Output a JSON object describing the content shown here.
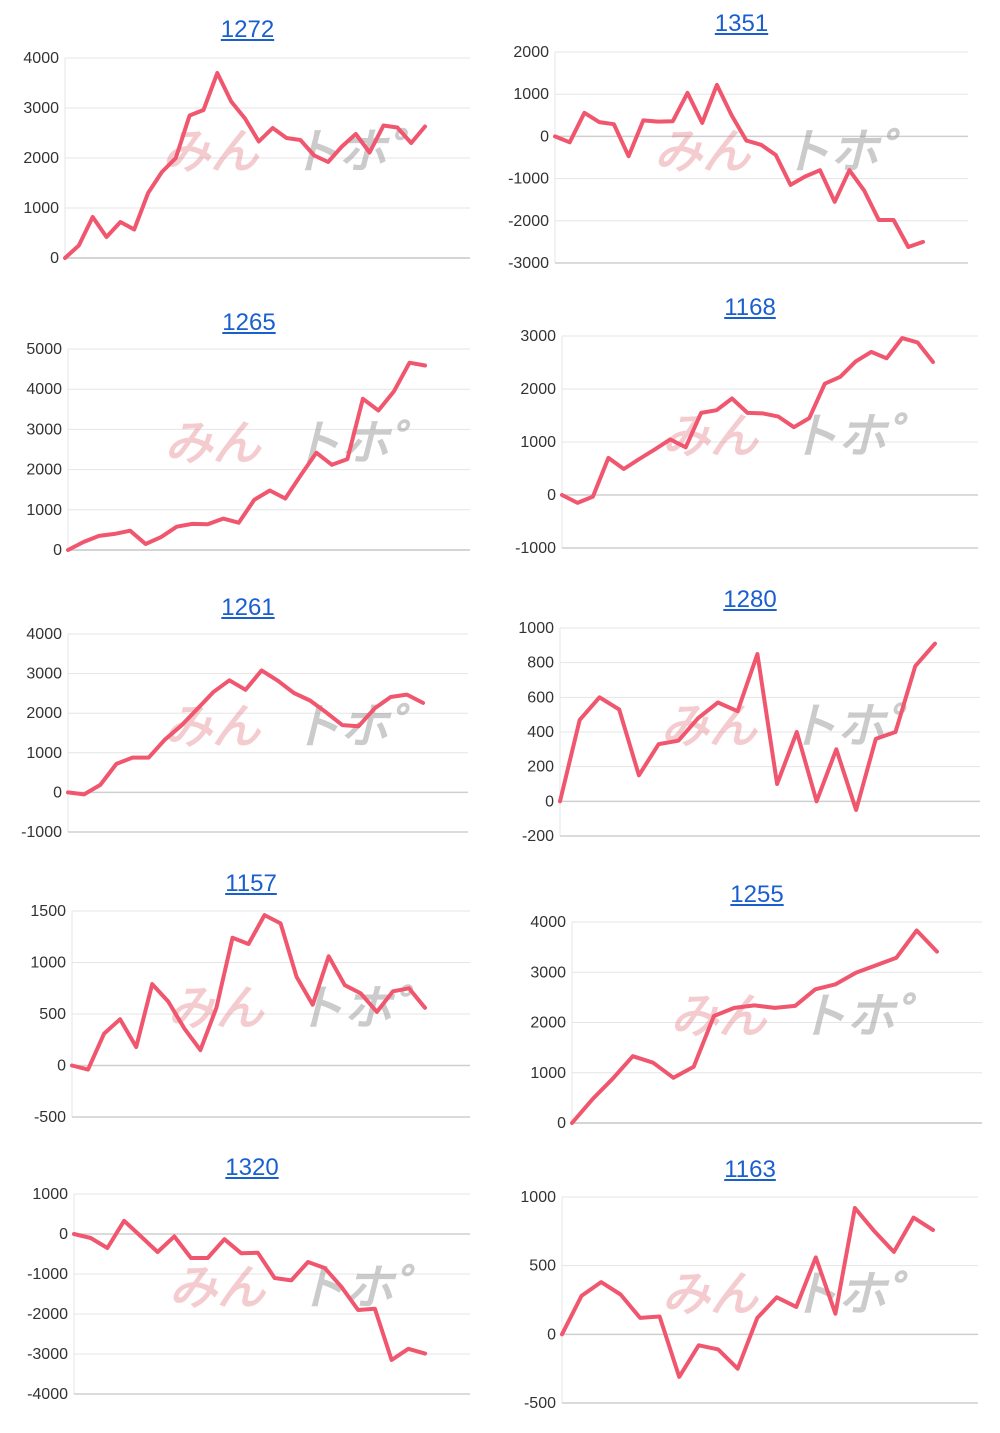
{
  "watermark": {
    "part1": "みん",
    "part2": "ト",
    "part3": "ホ゜"
  },
  "colors": {
    "line": "#f0566e",
    "title": "#1a5fd0"
  },
  "chart_data": [
    {
      "type": "line",
      "title": "1272",
      "ylim": [
        0,
        4000
      ],
      "yticks": [
        0,
        1000,
        2000,
        3000,
        4000
      ],
      "values": [
        0,
        250,
        820,
        420,
        720,
        570,
        1300,
        1720,
        2000,
        2850,
        2960,
        3700,
        3130,
        2790,
        2330,
        2600,
        2400,
        2360,
        2050,
        1920,
        2230,
        2480,
        2110,
        2650,
        2610,
        2300,
        2630
      ]
    },
    {
      "type": "line",
      "title": "1351",
      "ylim": [
        -3000,
        2000
      ],
      "yticks": [
        -3000,
        -2000,
        -1000,
        0,
        1000,
        2000
      ],
      "values": [
        0,
        -140,
        560,
        340,
        290,
        -470,
        380,
        350,
        360,
        1030,
        320,
        1220,
        500,
        -100,
        -200,
        -440,
        -1150,
        -950,
        -800,
        -1550,
        -800,
        -1280,
        -1980,
        -1980,
        -2620,
        -2500
      ]
    },
    {
      "type": "line",
      "title": "1265",
      "ylim": [
        0,
        5000
      ],
      "yticks": [
        0,
        1000,
        2000,
        3000,
        4000,
        5000
      ],
      "values": [
        0,
        200,
        350,
        400,
        480,
        150,
        320,
        580,
        650,
        640,
        780,
        680,
        1250,
        1480,
        1280,
        1860,
        2420,
        2120,
        2260,
        3760,
        3470,
        3950,
        4660,
        4590
      ]
    },
    {
      "type": "line",
      "title": "1168",
      "ylim": [
        -1000,
        3000
      ],
      "yticks": [
        -1000,
        0,
        1000,
        2000,
        3000
      ],
      "values": [
        0,
        -150,
        -30,
        700,
        490,
        680,
        860,
        1050,
        900,
        1550,
        1600,
        1820,
        1550,
        1540,
        1480,
        1280,
        1450,
        2100,
        2230,
        2520,
        2700,
        2580,
        2960,
        2880,
        2510
      ]
    },
    {
      "type": "line",
      "title": "1261",
      "ylim": [
        -1000,
        4000
      ],
      "yticks": [
        -1000,
        0,
        1000,
        2000,
        3000,
        4000
      ],
      "values": [
        0,
        -50,
        190,
        720,
        880,
        880,
        1330,
        1680,
        2100,
        2530,
        2830,
        2590,
        3080,
        2820,
        2510,
        2320,
        2020,
        1700,
        1670,
        2120,
        2410,
        2470,
        2260
      ]
    },
    {
      "type": "line",
      "title": "1280",
      "ylim": [
        -200,
        1000
      ],
      "yticks": [
        -200,
        0,
        200,
        400,
        600,
        800,
        1000
      ],
      "values": [
        0,
        470,
        600,
        530,
        150,
        330,
        350,
        480,
        570,
        520,
        850,
        100,
        400,
        0,
        300,
        -50,
        360,
        400,
        780,
        910
      ]
    },
    {
      "type": "line",
      "title": "1157",
      "ylim": [
        -500,
        1500
      ],
      "yticks": [
        -500,
        0,
        500,
        1000,
        1500
      ],
      "values": [
        0,
        -40,
        310,
        450,
        180,
        790,
        620,
        360,
        150,
        560,
        1240,
        1180,
        1460,
        1380,
        860,
        590,
        1060,
        780,
        700,
        520,
        720,
        750,
        560
      ]
    },
    {
      "type": "line",
      "title": "1255",
      "ylim": [
        0,
        4000
      ],
      "yticks": [
        0,
        1000,
        2000,
        3000,
        4000
      ],
      "values": [
        0,
        470,
        880,
        1330,
        1200,
        900,
        1120,
        2130,
        2290,
        2340,
        2290,
        2330,
        2660,
        2760,
        2990,
        3140,
        3290,
        3830,
        3410
      ]
    },
    {
      "type": "line",
      "title": "1320",
      "ylim": [
        -4000,
        1000
      ],
      "yticks": [
        -4000,
        -3000,
        -2000,
        -1000,
        0,
        1000
      ],
      "values": [
        0,
        -100,
        -350,
        330,
        -60,
        -450,
        -60,
        -600,
        -600,
        -130,
        -480,
        -470,
        -1100,
        -1160,
        -700,
        -850,
        -1320,
        -1900,
        -1870,
        -3150,
        -2870,
        -2990
      ]
    },
    {
      "type": "line",
      "title": "1163",
      "ylim": [
        -500,
        1000
      ],
      "yticks": [
        -500,
        0,
        500,
        1000
      ],
      "values": [
        0,
        280,
        380,
        290,
        120,
        130,
        -310,
        -80,
        -110,
        -250,
        120,
        270,
        200,
        560,
        150,
        920,
        750,
        600,
        850,
        760
      ]
    }
  ]
}
